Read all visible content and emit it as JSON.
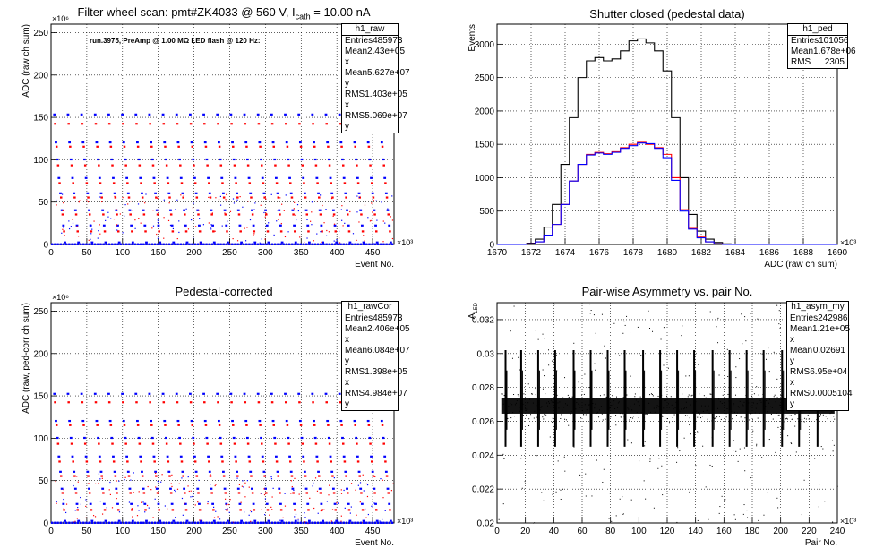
{
  "colors": {
    "blue": "#0000ff",
    "red": "#ff0000",
    "black": "#000000"
  },
  "chart_data": [
    {
      "id": "raw",
      "type": "scatter",
      "title": "Filter wheel scan: pmt#ZK4033 @   560 V, I",
      "title_sub": "cath",
      "title_tail": " = 10.00 nA",
      "annotation": "run.3975, PreAmp @ 1.00 MΩ LED flash @  120 Hz:",
      "xlabel": "Event No.",
      "ylabel": "ADC (raw ch sum)",
      "x_exponent": "×10³",
      "y_exponent": "×10⁶",
      "xlim": [
        0,
        480
      ],
      "ylim": [
        0,
        260
      ],
      "xticks": [
        0,
        50,
        100,
        150,
        200,
        250,
        300,
        350,
        400,
        450
      ],
      "yticks": [
        0,
        50,
        100,
        150,
        200,
        250
      ],
      "grid": true,
      "legend": "top-right",
      "level_blue": [
        153,
        120,
        100,
        78,
        60,
        40,
        22,
        2
      ],
      "level_red": [
        142,
        115,
        93,
        72,
        55,
        35,
        15
      ],
      "period": 19,
      "stats": {
        "name": "h1_raw",
        "rows": [
          {
            "label": "Entries",
            "value": "485973"
          },
          {
            "label": "Mean x",
            "value": "2.43e+05"
          },
          {
            "label": "Mean y",
            "value": "5.627e+07"
          },
          {
            "label": "RMS x",
            "value": "1.403e+05"
          },
          {
            "label": "RMS y",
            "value": "5.069e+07"
          }
        ]
      }
    },
    {
      "id": "ped",
      "type": "line",
      "title": "Shutter closed (pedestal data)",
      "xlabel": "ADC (raw ch sum)",
      "ylabel": "Events",
      "x_exponent": "×10³",
      "xlim": [
        1670,
        1690
      ],
      "ylim": [
        0,
        3300
      ],
      "xticks": [
        1670,
        1672,
        1674,
        1676,
        1678,
        1680,
        1682,
        1684,
        1686,
        1688,
        1690
      ],
      "yticks": [
        0,
        500,
        1000,
        1500,
        2000,
        2500,
        3000
      ],
      "grid": true,
      "legend": "top-right",
      "x": [
        1672.0,
        1672.5,
        1673.0,
        1673.5,
        1674.0,
        1674.5,
        1675.0,
        1675.5,
        1676.0,
        1676.5,
        1677.0,
        1677.5,
        1678.0,
        1678.5,
        1679.0,
        1679.5,
        1680.0,
        1680.5,
        1681.0,
        1681.5,
        1682.0,
        1682.5,
        1683.0,
        1683.5,
        1684.0,
        1684.5,
        1685.0
      ],
      "series": [
        {
          "color": "black",
          "values": [
            20,
            80,
            260,
            600,
            1200,
            1900,
            2500,
            2750,
            2800,
            2750,
            2780,
            2900,
            3050,
            3080,
            3020,
            2900,
            2600,
            1900,
            1000,
            450,
            200,
            80,
            30,
            10,
            0,
            0,
            0
          ]
        },
        {
          "color": "red",
          "values": [
            10,
            40,
            140,
            300,
            600,
            950,
            1200,
            1350,
            1380,
            1360,
            1390,
            1450,
            1500,
            1530,
            1500,
            1450,
            1350,
            1000,
            520,
            240,
            110,
            40,
            10,
            0,
            0,
            0,
            0
          ]
        },
        {
          "color": "blue",
          "values": [
            10,
            40,
            140,
            300,
            600,
            950,
            1200,
            1340,
            1370,
            1350,
            1380,
            1440,
            1480,
            1520,
            1510,
            1440,
            1300,
            960,
            500,
            230,
            100,
            40,
            10,
            0,
            0,
            0,
            0
          ]
        }
      ],
      "stats": {
        "name": "h1_ped",
        "rows": [
          {
            "label": "Entries",
            "value": "101056"
          },
          {
            "label": "Mean",
            "value": "1.678e+06"
          },
          {
            "label": "RMS",
            "value": "2305"
          }
        ]
      }
    },
    {
      "id": "cor",
      "type": "scatter",
      "title": "Pedestal-corrected",
      "xlabel": "Event No.",
      "ylabel": "ADC (raw, ped-corr ch sum)",
      "x_exponent": "×10³",
      "y_exponent": "×10⁶",
      "xlim": [
        0,
        480
      ],
      "ylim": [
        0,
        260
      ],
      "xticks": [
        0,
        50,
        100,
        150,
        200,
        250,
        300,
        350,
        400,
        450
      ],
      "yticks": [
        0,
        50,
        100,
        150,
        200,
        250
      ],
      "grid": true,
      "legend": "top-right",
      "level_blue": [
        152,
        120,
        100,
        78,
        60,
        40,
        22,
        2
      ],
      "level_red": [
        142,
        115,
        93,
        72,
        55,
        35,
        15
      ],
      "period": 19,
      "stats": {
        "name": "h1_rawCor",
        "rows": [
          {
            "label": "Entries",
            "value": "485973"
          },
          {
            "label": "Mean x",
            "value": "2.406e+05"
          },
          {
            "label": "Mean y",
            "value": "6.084e+07"
          },
          {
            "label": "RMS x",
            "value": "1.398e+05"
          },
          {
            "label": "RMS y",
            "value": "4.984e+07"
          }
        ]
      }
    },
    {
      "id": "asym",
      "type": "scatter",
      "title": "Pair-wise Asymmetry vs. pair No.",
      "xlabel": "Pair No.",
      "ylabel": "A",
      "ylabel_sub": "LED",
      "x_exponent": "×10³",
      "xlim": [
        0,
        240
      ],
      "ylim": [
        0.02,
        0.033
      ],
      "xticks": [
        0,
        20,
        40,
        60,
        80,
        100,
        120,
        140,
        160,
        180,
        200,
        220,
        240
      ],
      "yticks": [
        0.02,
        0.022,
        0.024,
        0.026,
        0.028,
        0.03,
        0.032
      ],
      "grid": true,
      "legend": "top-right",
      "band_center": 0.0269,
      "spike_x": [
        6,
        17,
        29,
        41,
        54,
        66,
        78,
        90,
        103,
        115,
        127,
        139,
        152,
        164,
        176,
        188,
        201,
        213,
        226
      ],
      "stats": {
        "name": "h1_asym_my",
        "rows": [
          {
            "label": "Entries",
            "value": "242986"
          },
          {
            "label": "Mean x",
            "value": "1.21e+05"
          },
          {
            "label": "Mean y",
            "value": "0.02691"
          },
          {
            "label": "RMS x",
            "value": "6.95e+04"
          },
          {
            "label": "RMS y",
            "value": "0.0005104"
          }
        ]
      }
    }
  ]
}
